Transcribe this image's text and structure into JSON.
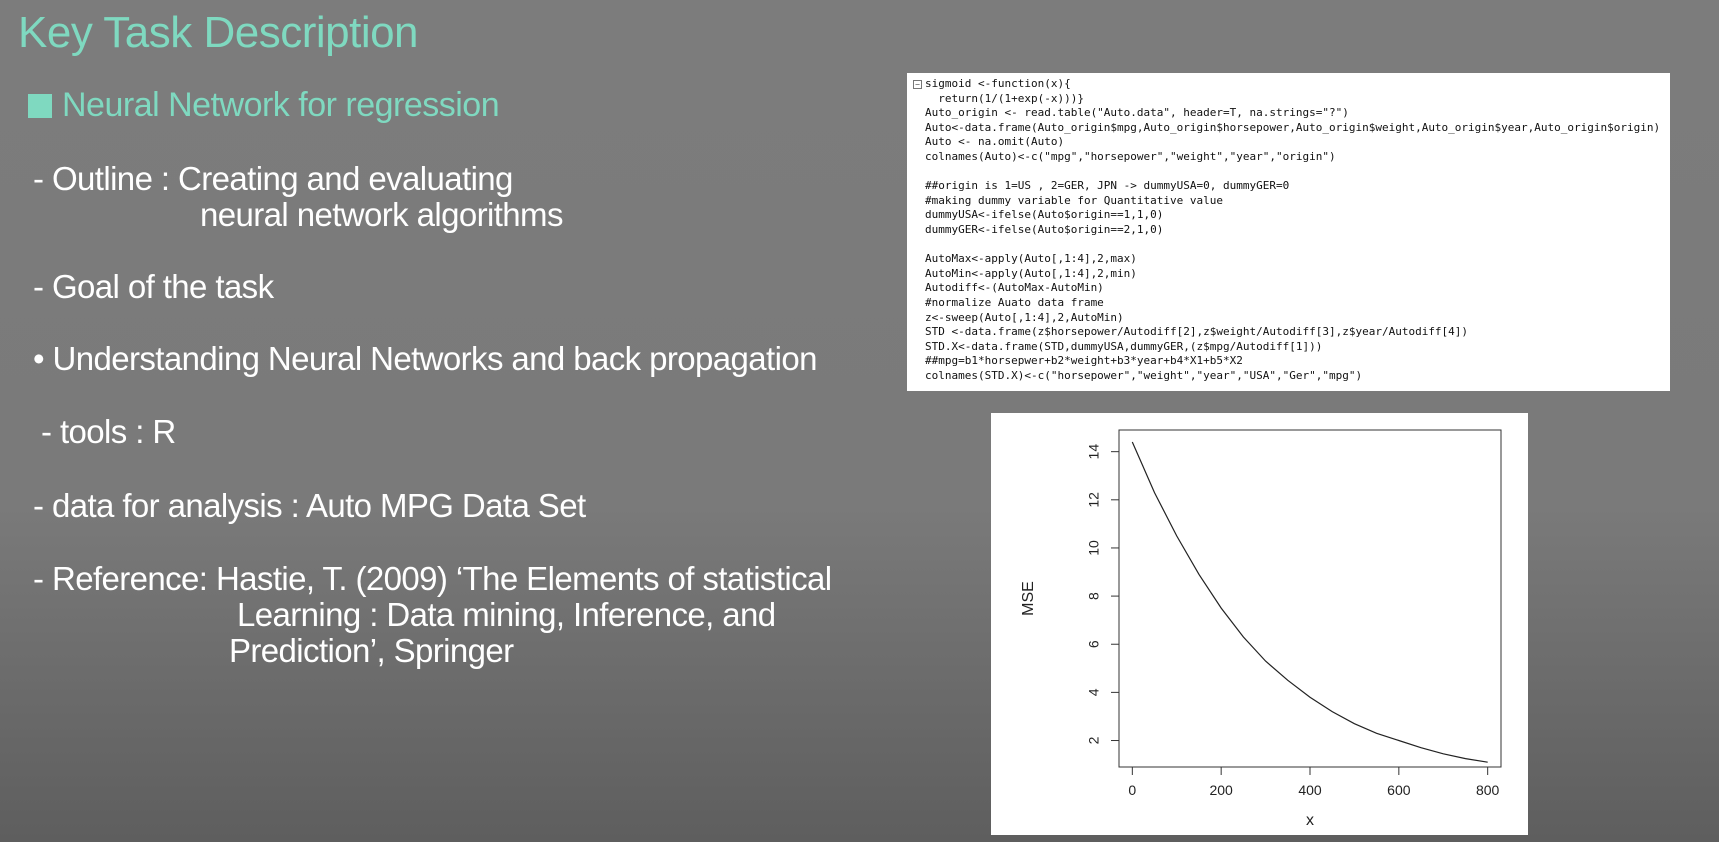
{
  "slide": {
    "title": "Key Task Description",
    "section": "Neural Network for regression",
    "lines": {
      "outline_1": "- Outline : Creating and  evaluating",
      "outline_2": "neural network algorithms",
      "goal": "- Goal of the task",
      "understanding": "• Understanding Neural Networks and back propagation",
      "tools": "- tools : R",
      "data": "- data for analysis : Auto MPG Data Set",
      "reference_1": "- Reference: Hastie, T. (2009)  ‘The Elements of statistical",
      "reference_2": "Learning : Data mining, Inference, and",
      "reference_3": "Prediction’, Springer"
    }
  },
  "code": {
    "lines": [
      "sigmoid <-function(x){",
      "  return(1/(1+exp(-x)))}",
      "Auto_origin <- read.table(\"Auto.data\", header=T, na.strings=\"?\")",
      "Auto<-data.frame(Auto_origin$mpg,Auto_origin$horsepower,Auto_origin$weight,Auto_origin$year,Auto_origin$origin)",
      "Auto <- na.omit(Auto)",
      "colnames(Auto)<-c(\"mpg\",\"horsepower\",\"weight\",\"year\",\"origin\")",
      "",
      "##origin is 1=US , 2=GER, JPN -> dummyUSA=0, dummyGER=0",
      "#making dummy variable for Quantitative value",
      "dummyUSA<-ifelse(Auto$origin==1,1,0)",
      "dummyGER<-ifelse(Auto$origin==2,1,0)",
      "",
      "AutoMax<-apply(Auto[,1:4],2,max)",
      "AutoMin<-apply(Auto[,1:4],2,min)",
      "Autodiff<-(AutoMax-AutoMin)",
      "#normalize Auato data frame",
      "z<-sweep(Auto[,1:4],2,AutoMin)",
      "STD <-data.frame(z$horsepower/Autodiff[2],z$weight/Autodiff[3],z$year/Autodiff[4])",
      "STD.X<-data.frame(STD,dummyUSA,dummyGER,(z$mpg/Autodiff[1]))",
      "##mpg=b1*horsepwer+b2*weight+b3*year+b4*X1+b5*X2",
      "colnames(STD.X)<-c(\"horsepower\",\"weight\",\"year\",\"USA\",\"Ger\",\"mpg\")"
    ],
    "fold_icon": "minus-box-icon"
  },
  "chart_data": {
    "type": "line",
    "xlabel": "x",
    "ylabel": "MSE",
    "xlim": [
      -30,
      830
    ],
    "ylim": [
      0.9,
      14.9
    ],
    "xticks": [
      "0",
      "200",
      "400",
      "600",
      "800"
    ],
    "yticks": [
      "2",
      "4",
      "6",
      "8",
      "10",
      "12",
      "14"
    ],
    "x": [
      0,
      50,
      100,
      150,
      200,
      250,
      300,
      350,
      400,
      450,
      500,
      550,
      600,
      650,
      700,
      750,
      800
    ],
    "y": [
      14.4,
      12.3,
      10.5,
      8.9,
      7.5,
      6.3,
      5.3,
      4.5,
      3.8,
      3.2,
      2.7,
      2.3,
      2.0,
      1.7,
      1.45,
      1.25,
      1.1
    ],
    "line_color": "#222222",
    "grid": false,
    "legend": "none"
  }
}
